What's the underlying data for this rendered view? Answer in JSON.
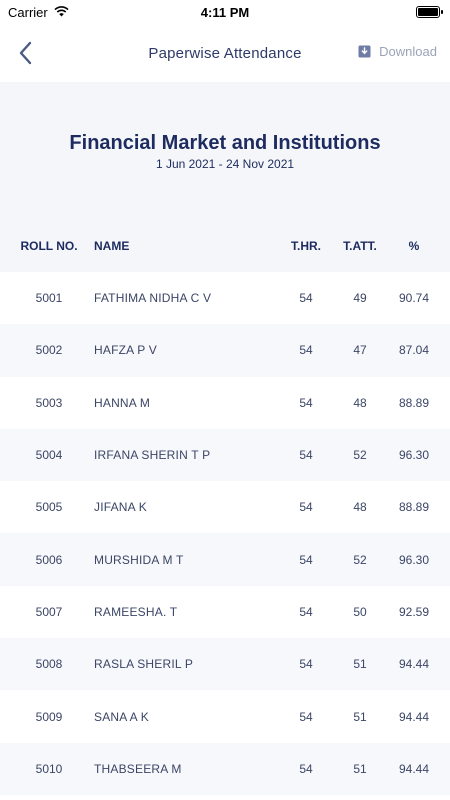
{
  "status": {
    "carrier": "Carrier",
    "time": "4:11 PM"
  },
  "nav": {
    "title": "Paperwise Attendance",
    "download_label": "Download"
  },
  "header": {
    "course": "Financial Market and Institutions",
    "date_range": "1 Jun 2021 - 24 Nov 2021"
  },
  "table": {
    "columns": [
      "ROLL NO.",
      "NAME",
      "T.HR.",
      "T.ATT.",
      "%"
    ],
    "rows": [
      {
        "roll": "5001",
        "name": "FATHIMA NIDHA C V",
        "thr": "54",
        "tatt": "49",
        "pct": "90.74"
      },
      {
        "roll": "5002",
        "name": "HAFZA P V",
        "thr": "54",
        "tatt": "47",
        "pct": "87.04"
      },
      {
        "roll": "5003",
        "name": "HANNA M",
        "thr": "54",
        "tatt": "48",
        "pct": "88.89"
      },
      {
        "roll": "5004",
        "name": "IRFANA SHERIN T P",
        "thr": "54",
        "tatt": "52",
        "pct": "96.30"
      },
      {
        "roll": "5005",
        "name": "JIFANA K",
        "thr": "54",
        "tatt": "48",
        "pct": "88.89"
      },
      {
        "roll": "5006",
        "name": "MURSHIDA M T",
        "thr": "54",
        "tatt": "52",
        "pct": "96.30"
      },
      {
        "roll": "5007",
        "name": "RAMEESHA. T",
        "thr": "54",
        "tatt": "50",
        "pct": "92.59"
      },
      {
        "roll": "5008",
        "name": "RASLA SHERIL P",
        "thr": "54",
        "tatt": "51",
        "pct": "94.44"
      },
      {
        "roll": "5009",
        "name": "SANA A K",
        "thr": "54",
        "tatt": "51",
        "pct": "94.44"
      },
      {
        "roll": "5010",
        "name": "THABSEERA M",
        "thr": "54",
        "tatt": "51",
        "pct": "94.44"
      }
    ]
  },
  "icons": {
    "wifi": "wifi-icon",
    "battery": "battery-icon",
    "back": "chevron-left-icon",
    "download": "download-icon"
  },
  "colors": {
    "title": "#1d2b5e",
    "panel_bg": "#f4f6fa",
    "muted": "#9aa3b8"
  }
}
